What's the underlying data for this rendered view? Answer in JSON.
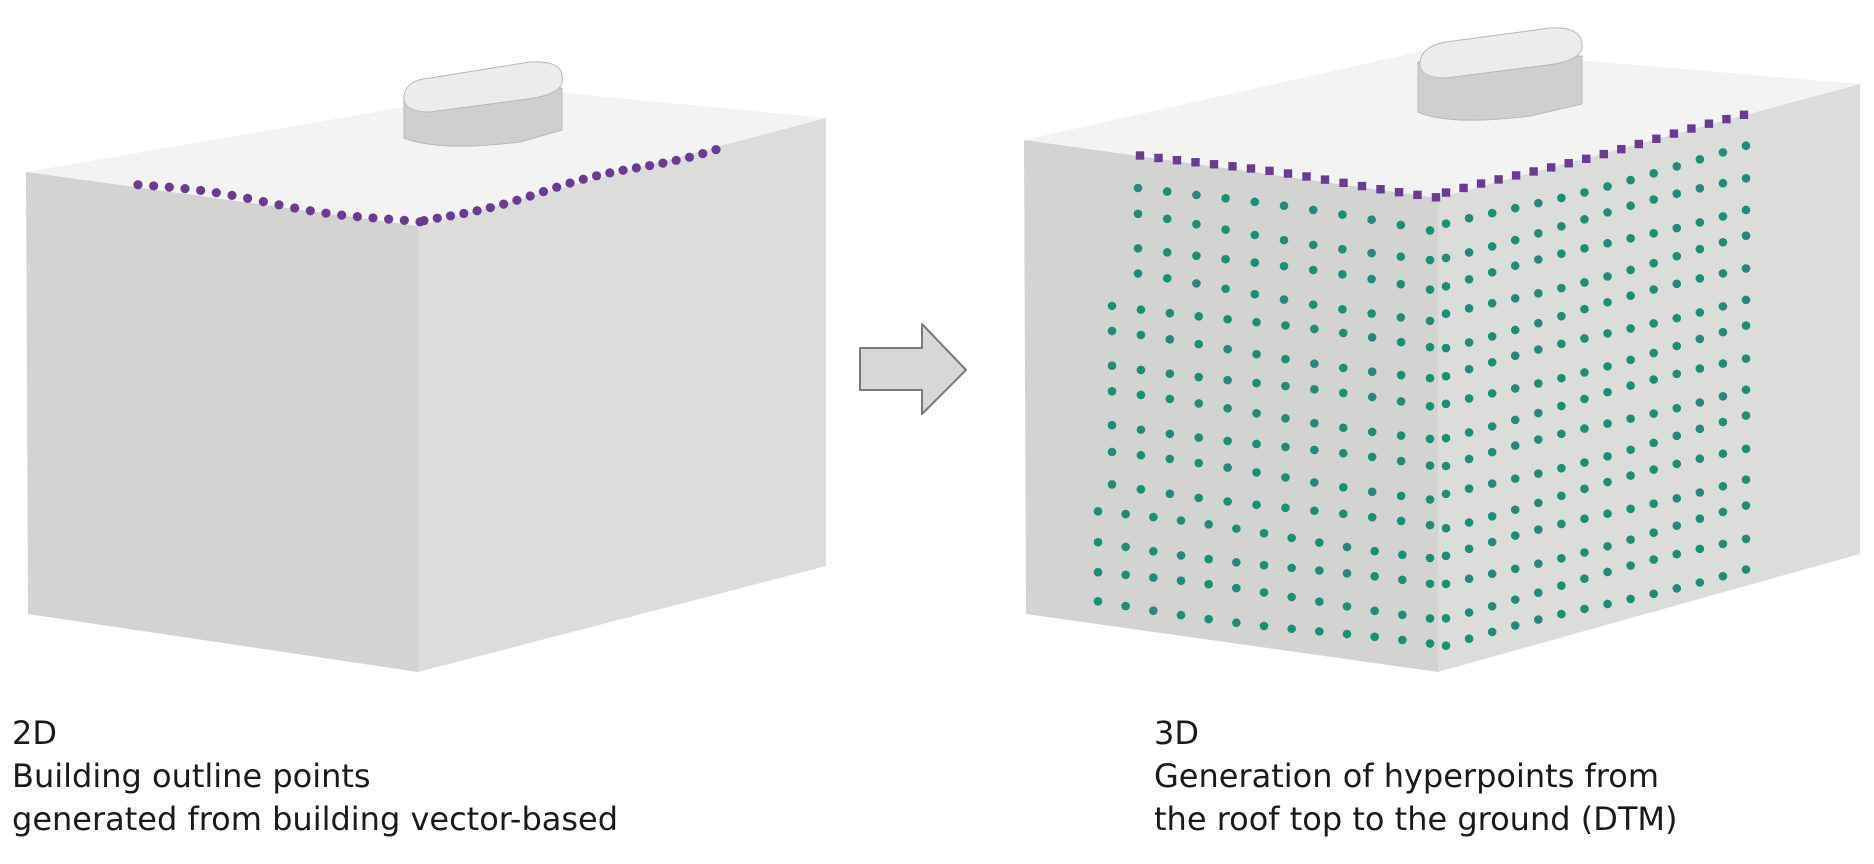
{
  "panels": [
    {
      "id": "left",
      "view": "2D",
      "lines": [
        "Building outline points",
        "generated from building vector-based"
      ],
      "point_type": "building outline points",
      "point_color": "#6a3a95"
    },
    {
      "id": "right",
      "view": "3D",
      "lines": [
        "Generation of hyperpoints from",
        "the roof top to the ground (DTM)"
      ],
      "point_type": "hyperpoints",
      "roof_point_color": "#6a3a95",
      "wall_point_color": "#1a8e78"
    }
  ],
  "arrow": {
    "direction": "right",
    "fill": "#d5d8d5",
    "stroke": "#7a7a7a"
  },
  "colors": {
    "roof": "#f3f3f2",
    "wall_left": "#d3d4d2",
    "wall_right": "#dcdcda",
    "chimney_top": "#ececea",
    "chimney_side": "#cfd0ce",
    "edge": "#b8b8b6"
  }
}
